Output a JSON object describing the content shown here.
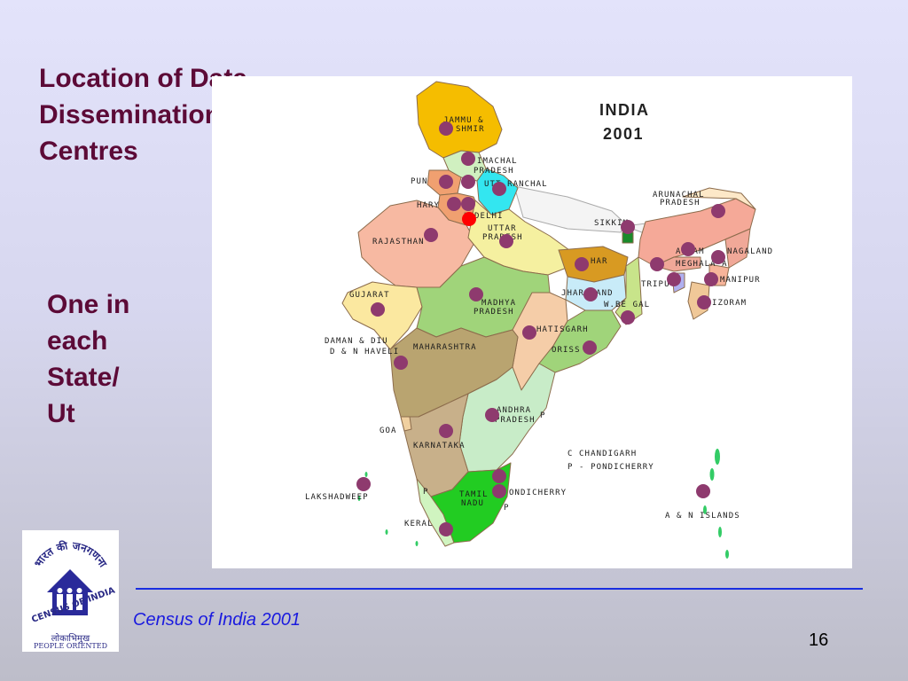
{
  "slide": {
    "title_lines": [
      "Location of Data",
      "Dissemination",
      "Centres"
    ],
    "side_lines": [
      "One in",
      "each",
      "State/",
      "Ut"
    ],
    "footer": "Census of India 2001",
    "page_number": "16"
  },
  "map": {
    "title_lines": [
      "INDIA",
      "2001"
    ],
    "legend_lines": [
      "C  CHANDIGARH",
      "P - PONDICHERRY"
    ],
    "labels": {
      "jammu_kashmir_1": "JAMMU &",
      "jammu_kashmir_2": "SHMIR",
      "himachal_1": "IMACHAL",
      "himachal_2": "PRADESH",
      "punjab": "PUN",
      "uttaranchal": "UTT RANCHAL",
      "haryana": "HARY",
      "delhi": "DELHI",
      "rajasthan": "RAJASTHAN",
      "uttar_pradesh_1": "UTTAR",
      "uttar_pradesh_2": "PRADESH",
      "sikkim": "SIKKIM",
      "arunachal_1": "ARUNACHAL",
      "arunachal_2": "PRADESH",
      "assam": "AS  AM",
      "nagaland": "NAGALAND",
      "meghalaya": "MEGHALA  A",
      "manipur": "MANIPUR",
      "tripura": "TRIPU",
      "mizoram": "IZORAM",
      "bihar": "HAR",
      "jharkhand": "JHAR  HAND",
      "west_bengal": "W.BE  GAL",
      "gujarat": "GUJARAT",
      "madhya_pradesh_1": "MADHYA",
      "madhya_pradesh_2": "PRADESH",
      "chhattisgarh": "HATISGARH",
      "orissa": "ORISS",
      "daman_1": "DAMAN & DIU",
      "daman_2": "D & N HAVELI",
      "maharashtra": "MAHARASHTRA",
      "andhra_1": "ANDHRA",
      "andhra_2": "PRADESH",
      "andhra_p": "P",
      "goa": "GOA",
      "karnataka": "KARNATAKA",
      "lakshadweep": "LAKSHADWEEP",
      "pondicherry": "ONDICHERRY",
      "tamil_nadu_1": "TAMIL",
      "tamil_nadu_2": "NADU",
      "tn_p1": "P",
      "tn_p2": "P",
      "kerala": "KERAL",
      "andaman": "A & N ISLANDS"
    },
    "colors": {
      "dot": "#8e3a6e",
      "delhi_dot": "#ff0000",
      "title_text": "#5c0a37",
      "footer_text": "#1a1adf",
      "rule": "#1a2ee0"
    }
  },
  "logo": {
    "arc_text": "भारत की जनगणना",
    "side_text": "CENSUS OF INDIA",
    "caption_hindi": "लोकाभिमुख",
    "caption_english": "PEOPLE ORIENTED"
  }
}
